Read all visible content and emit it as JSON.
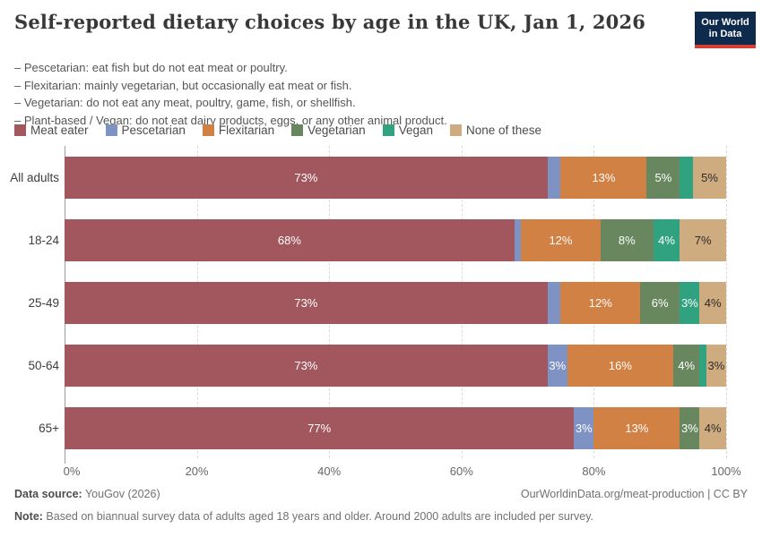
{
  "header": {
    "title": "Self-reported dietary choices by age in the UK, Jan 1, 2026",
    "subtitle_lines": [
      "– Pescetarian: eat fish but do not eat meat or poultry.",
      "– Flexitarian: mainly vegetarian, but occasionally eat meat or fish.",
      "– Vegetarian: do not eat any meat, poultry, game, fish, or shellfish.",
      "– Plant-based / Vegan: do not eat dairy products, eggs, or any other animal product."
    ],
    "logo": {
      "line1": "Our World",
      "line2": "in Data",
      "bg": "#0e2a4c",
      "accent": "#d63e32"
    }
  },
  "chart_data": {
    "type": "bar",
    "stacked": true,
    "orientation": "horizontal",
    "title": "Self-reported dietary choices by age in the UK, Jan 1, 2026",
    "categories": [
      "All adults",
      "18-24",
      "25-49",
      "50-64",
      "65+"
    ],
    "series": [
      {
        "name": "Meat eater",
        "color": "#a2575f",
        "text": "light",
        "values": [
          73,
          68,
          73,
          73,
          77
        ]
      },
      {
        "name": "Pescetarian",
        "color": "#7e92c4",
        "text": "light",
        "values": [
          2,
          1,
          2,
          3,
          3
        ]
      },
      {
        "name": "Flexitarian",
        "color": "#d28145",
        "text": "light",
        "values": [
          13,
          12,
          12,
          16,
          13
        ]
      },
      {
        "name": "Vegetarian",
        "color": "#68875f",
        "text": "light",
        "values": [
          5,
          8,
          6,
          4,
          3
        ]
      },
      {
        "name": "Vegan",
        "color": "#30a27f",
        "text": "light",
        "values": [
          2,
          4,
          3,
          1,
          0
        ]
      },
      {
        "name": "None of these",
        "color": "#cfab80",
        "text": "dark",
        "values": [
          5,
          7,
          4,
          3,
          4
        ]
      }
    ],
    "x_tick_labels": [
      "0%",
      "20%",
      "40%",
      "60%",
      "80%",
      "100%"
    ],
    "x_tick_values": [
      0,
      20,
      40,
      60,
      80,
      100
    ],
    "xlim": [
      0,
      100
    ],
    "value_suffix": "%",
    "value_label_min_to_show": 3,
    "label_color_on_dark": "#ffffff",
    "label_color_on_light": "#2b2b2b",
    "legend_position": "top",
    "grid": "vertical-dashed"
  },
  "footer": {
    "source_label": "Data source:",
    "source_value": " YouGov (2026)",
    "link": "OurWorldinData.org/meat-production | CC BY",
    "note_label": "Note:",
    "note_value": " Based on biannual survey data of adults aged 18 years and older. Around 2000 adults are included per survey."
  }
}
